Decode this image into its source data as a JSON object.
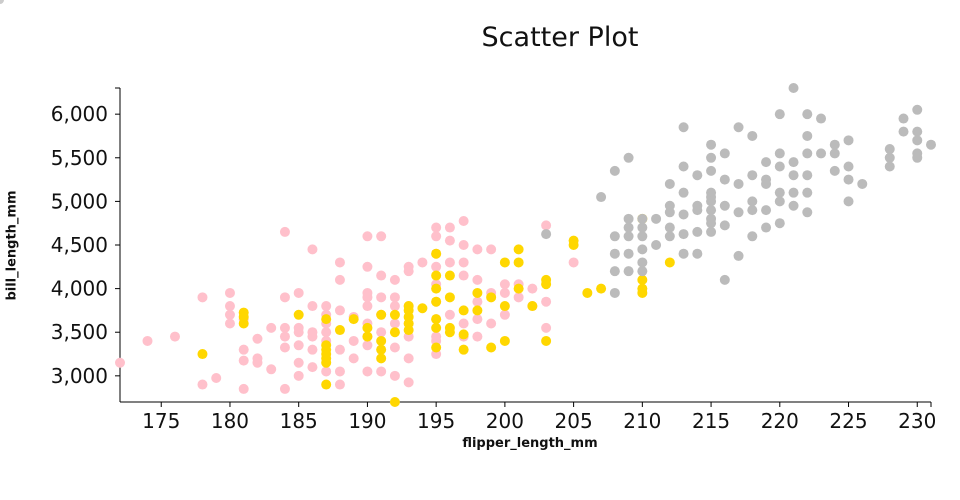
{
  "chart_data": {
    "type": "scatter",
    "title": "Scatter Plot",
    "xlabel": "flipper_length_mm",
    "ylabel": "bill_length_mm",
    "xlim": [
      172,
      231
    ],
    "ylim": [
      2700,
      6300
    ],
    "x_ticks": [
      175,
      180,
      185,
      190,
      195,
      200,
      205,
      210,
      215,
      220,
      225,
      230
    ],
    "x_tick_labels": [
      "175",
      "180",
      "185",
      "190",
      "195",
      "200",
      "205",
      "210",
      "215",
      "220",
      "225",
      "230"
    ],
    "y_ticks": [
      3000,
      3500,
      4000,
      4500,
      5000,
      5500,
      6000
    ],
    "y_tick_labels": [
      "3,000",
      "3,500",
      "4,000",
      "4,500",
      "5,000",
      "5,500",
      "6,000"
    ],
    "grid": false,
    "series": [
      {
        "color": "#ffc0cb",
        "points": [
          [
            172,
            3150
          ],
          [
            174,
            3400
          ],
          [
            176,
            3450
          ],
          [
            178,
            3900
          ],
          [
            178,
            2900
          ],
          [
            179,
            2975
          ],
          [
            180,
            3950
          ],
          [
            180,
            3800
          ],
          [
            180,
            3700
          ],
          [
            180,
            3600
          ],
          [
            181,
            3650
          ],
          [
            181,
            3300
          ],
          [
            181,
            3175
          ],
          [
            181,
            2850
          ],
          [
            182,
            3425
          ],
          [
            182,
            3200
          ],
          [
            182,
            3150
          ],
          [
            183,
            3550
          ],
          [
            183,
            3075
          ],
          [
            184,
            4650
          ],
          [
            184,
            3900
          ],
          [
            184,
            3550
          ],
          [
            184,
            3450
          ],
          [
            184,
            3325
          ],
          [
            184,
            2850
          ],
          [
            185,
            3950
          ],
          [
            185,
            3550
          ],
          [
            185,
            3500
          ],
          [
            185,
            3350
          ],
          [
            185,
            3150
          ],
          [
            185,
            3000
          ],
          [
            186,
            4450
          ],
          [
            186,
            3800
          ],
          [
            186,
            3500
          ],
          [
            186,
            3450
          ],
          [
            186,
            3300
          ],
          [
            186,
            3100
          ],
          [
            187,
            3800
          ],
          [
            187,
            3700
          ],
          [
            187,
            3600
          ],
          [
            187,
            3500
          ],
          [
            187,
            3400
          ],
          [
            187,
            3050
          ],
          [
            188,
            4300
          ],
          [
            188,
            4100
          ],
          [
            188,
            3750
          ],
          [
            188,
            3300
          ],
          [
            188,
            3050
          ],
          [
            188,
            2900
          ],
          [
            189,
            3675
          ],
          [
            189,
            3400
          ],
          [
            189,
            3200
          ],
          [
            190,
            4600
          ],
          [
            190,
            4250
          ],
          [
            190,
            3950
          ],
          [
            190,
            3900
          ],
          [
            190,
            3800
          ],
          [
            190,
            3600
          ],
          [
            190,
            3450
          ],
          [
            190,
            3350
          ],
          [
            190,
            3050
          ],
          [
            191,
            4600
          ],
          [
            191,
            4150
          ],
          [
            191,
            3900
          ],
          [
            191,
            3700
          ],
          [
            191,
            3500
          ],
          [
            191,
            3050
          ],
          [
            192,
            4100
          ],
          [
            192,
            3900
          ],
          [
            192,
            3800
          ],
          [
            192,
            3600
          ],
          [
            192,
            3325
          ],
          [
            192,
            3000
          ],
          [
            193,
            4250
          ],
          [
            193,
            4200
          ],
          [
            193,
            3800
          ],
          [
            193,
            3600
          ],
          [
            193,
            3450
          ],
          [
            193,
            3200
          ],
          [
            193,
            2925
          ],
          [
            194,
            4300
          ],
          [
            195,
            4700
          ],
          [
            195,
            4600
          ],
          [
            195,
            4400
          ],
          [
            195,
            4250
          ],
          [
            195,
            4050
          ],
          [
            195,
            3850
          ],
          [
            195,
            3650
          ],
          [
            195,
            3450
          ],
          [
            195,
            3400
          ],
          [
            195,
            3250
          ],
          [
            196,
            4700
          ],
          [
            196,
            4550
          ],
          [
            196,
            4300
          ],
          [
            196,
            3700
          ],
          [
            197,
            4775
          ],
          [
            197,
            4500
          ],
          [
            197,
            4300
          ],
          [
            197,
            4150
          ],
          [
            197,
            3600
          ],
          [
            197,
            3450
          ],
          [
            198,
            4450
          ],
          [
            198,
            4100
          ],
          [
            198,
            3850
          ],
          [
            198,
            3650
          ],
          [
            198,
            3450
          ],
          [
            199,
            4450
          ],
          [
            199,
            3950
          ],
          [
            199,
            3600
          ],
          [
            200,
            4050
          ],
          [
            200,
            3950
          ],
          [
            200,
            3700
          ],
          [
            201,
            4050
          ],
          [
            201,
            3900
          ],
          [
            202,
            4000
          ],
          [
            202,
            3800
          ],
          [
            203,
            3850
          ],
          [
            203,
            3550
          ],
          [
            203,
            4725
          ],
          [
            205,
            4300
          ]
        ]
      },
      {
        "color": "#ffd700",
        "points": [
          [
            178,
            3250
          ],
          [
            181,
            3725
          ],
          [
            181,
            3675
          ],
          [
            181,
            3600
          ],
          [
            185,
            3700
          ],
          [
            187,
            3650
          ],
          [
            187,
            3350
          ],
          [
            187,
            3300
          ],
          [
            187,
            3250
          ],
          [
            187,
            3200
          ],
          [
            187,
            3150
          ],
          [
            187,
            2900
          ],
          [
            188,
            3525
          ],
          [
            189,
            3650
          ],
          [
            190,
            3550
          ],
          [
            190,
            3450
          ],
          [
            191,
            3700
          ],
          [
            191,
            3400
          ],
          [
            191,
            3300
          ],
          [
            191,
            3200
          ],
          [
            192,
            2700
          ],
          [
            192,
            3700
          ],
          [
            192,
            3500
          ],
          [
            193,
            3800
          ],
          [
            193,
            3750
          ],
          [
            193,
            3675
          ],
          [
            193,
            3600
          ],
          [
            193,
            3525
          ],
          [
            194,
            3775
          ],
          [
            195,
            4400
          ],
          [
            195,
            4150
          ],
          [
            195,
            4000
          ],
          [
            195,
            3850
          ],
          [
            195,
            3650
          ],
          [
            195,
            3550
          ],
          [
            195,
            3325
          ],
          [
            196,
            4150
          ],
          [
            196,
            3900
          ],
          [
            196,
            3550
          ],
          [
            196,
            3500
          ],
          [
            197,
            3750
          ],
          [
            197,
            3475
          ],
          [
            197,
            3300
          ],
          [
            198,
            3950
          ],
          [
            198,
            3750
          ],
          [
            199,
            3900
          ],
          [
            199,
            3325
          ],
          [
            200,
            4300
          ],
          [
            200,
            3800
          ],
          [
            200,
            3400
          ],
          [
            201,
            4450
          ],
          [
            201,
            4300
          ],
          [
            201,
            4000
          ],
          [
            202,
            3800
          ],
          [
            203,
            4100
          ],
          [
            203,
            4050
          ],
          [
            203,
            3400
          ],
          [
            205,
            4550
          ],
          [
            205,
            4500
          ],
          [
            206,
            3950
          ],
          [
            207,
            4000
          ],
          [
            210,
            4800
          ],
          [
            210,
            4100
          ],
          [
            210,
            4000
          ],
          [
            210,
            3950
          ],
          [
            212,
            4300
          ]
        ]
      },
      {
        "color": "#bbbbbb",
        "points": [
          [
            203,
            4625
          ],
          [
            207,
            5050
          ],
          [
            208,
            5350
          ],
          [
            208,
            4600
          ],
          [
            208,
            4400
          ],
          [
            208,
            4200
          ],
          [
            208,
            3950
          ],
          [
            209,
            5500
          ],
          [
            209,
            4800
          ],
          [
            209,
            4700
          ],
          [
            209,
            4600
          ],
          [
            209,
            4400
          ],
          [
            209,
            4200
          ],
          [
            210,
            4800
          ],
          [
            210,
            4700
          ],
          [
            210,
            4600
          ],
          [
            210,
            4450
          ],
          [
            210,
            4300
          ],
          [
            210,
            4200
          ],
          [
            211,
            4800
          ],
          [
            211,
            4500
          ],
          [
            212,
            5200
          ],
          [
            212,
            4950
          ],
          [
            212,
            4875
          ],
          [
            212,
            4700
          ],
          [
            212,
            4600
          ],
          [
            213,
            5850
          ],
          [
            213,
            5400
          ],
          [
            213,
            5100
          ],
          [
            213,
            4850
          ],
          [
            213,
            4625
          ],
          [
            213,
            4400
          ],
          [
            214,
            5300
          ],
          [
            214,
            4950
          ],
          [
            214,
            4900
          ],
          [
            214,
            4650
          ],
          [
            214,
            4400
          ],
          [
            215,
            5650
          ],
          [
            215,
            5500
          ],
          [
            215,
            5350
          ],
          [
            215,
            5100
          ],
          [
            215,
            5050
          ],
          [
            215,
            5000
          ],
          [
            215,
            4900
          ],
          [
            215,
            4800
          ],
          [
            215,
            4750
          ],
          [
            215,
            4650
          ],
          [
            216,
            5550
          ],
          [
            216,
            5250
          ],
          [
            216,
            4950
          ],
          [
            216,
            4725
          ],
          [
            216,
            4100
          ],
          [
            217,
            5850
          ],
          [
            217,
            5200
          ],
          [
            217,
            4875
          ],
          [
            217,
            4375
          ],
          [
            218,
            5750
          ],
          [
            218,
            5300
          ],
          [
            218,
            5000
          ],
          [
            218,
            4900
          ],
          [
            218,
            4600
          ],
          [
            219,
            5450
          ],
          [
            219,
            5250
          ],
          [
            219,
            5200
          ],
          [
            219,
            4900
          ],
          [
            219,
            4700
          ],
          [
            220,
            6000
          ],
          [
            220,
            5550
          ],
          [
            220,
            5400
          ],
          [
            220,
            5100
          ],
          [
            220,
            5000
          ],
          [
            220,
            4750
          ],
          [
            221,
            6300
          ],
          [
            221,
            5450
          ],
          [
            221,
            5300
          ],
          [
            221,
            5100
          ],
          [
            221,
            4950
          ],
          [
            222,
            6000
          ],
          [
            222,
            5750
          ],
          [
            222,
            5550
          ],
          [
            222,
            5300
          ],
          [
            222,
            5100
          ],
          [
            222,
            4875
          ],
          [
            223,
            5950
          ],
          [
            223,
            5550
          ],
          [
            224,
            5650
          ],
          [
            224,
            5550
          ],
          [
            224,
            5350
          ],
          [
            225,
            5700
          ],
          [
            225,
            5400
          ],
          [
            225,
            5250
          ],
          [
            225,
            5000
          ],
          [
            226,
            5200
          ],
          [
            228,
            5600
          ],
          [
            228,
            5500
          ],
          [
            228,
            5400
          ],
          [
            229,
            5950
          ],
          [
            229,
            5800
          ],
          [
            230,
            6050
          ],
          [
            230,
            5800
          ],
          [
            230,
            5700
          ],
          [
            230,
            5550
          ],
          [
            230,
            5500
          ],
          [
            231,
            5650
          ]
        ]
      }
    ]
  }
}
